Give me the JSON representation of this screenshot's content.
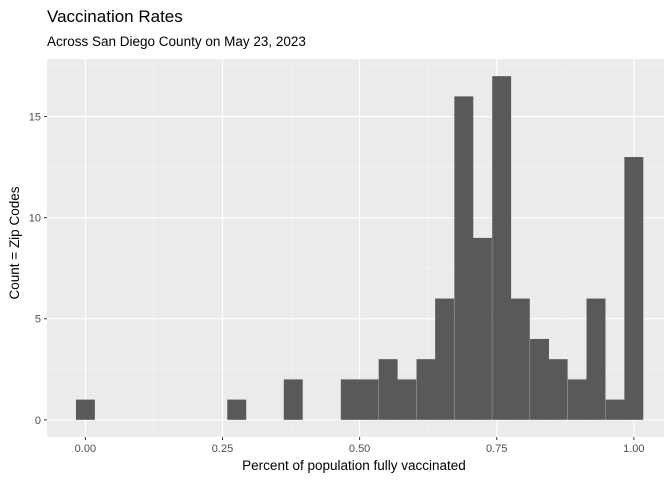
{
  "chart_data": {
    "type": "bar",
    "title": "Vaccination Rates",
    "subtitle": "Across San Diego County on May 23, 2023",
    "xlabel": "Percent of population fully vaccinated",
    "ylabel": "Count = Zip Codes",
    "xlim": [
      -0.07,
      1.055
    ],
    "ylim": [
      -0.85,
      17.85
    ],
    "x_ticks": [
      0.0,
      0.25,
      0.5,
      0.75,
      1.0
    ],
    "x_tick_labels": [
      "0.00",
      "0.25",
      "0.50",
      "0.75",
      "1.00"
    ],
    "y_ticks": [
      0,
      5,
      10,
      15
    ],
    "y_tick_labels": [
      "0",
      "5",
      "10",
      "15"
    ],
    "bin_width": 0.0345,
    "bins": [
      {
        "x": 0.0,
        "count": 1
      },
      {
        "x": 0.276,
        "count": 1
      },
      {
        "x": 0.379,
        "count": 2
      },
      {
        "x": 0.483,
        "count": 2
      },
      {
        "x": 0.517,
        "count": 2
      },
      {
        "x": 0.552,
        "count": 3
      },
      {
        "x": 0.586,
        "count": 2
      },
      {
        "x": 0.621,
        "count": 3
      },
      {
        "x": 0.655,
        "count": 6
      },
      {
        "x": 0.69,
        "count": 16
      },
      {
        "x": 0.724,
        "count": 9
      },
      {
        "x": 0.759,
        "count": 17
      },
      {
        "x": 0.793,
        "count": 6
      },
      {
        "x": 0.828,
        "count": 4
      },
      {
        "x": 0.862,
        "count": 3
      },
      {
        "x": 0.897,
        "count": 2
      },
      {
        "x": 0.931,
        "count": 6
      },
      {
        "x": 0.966,
        "count": 1
      },
      {
        "x": 1.0,
        "count": 13
      }
    ],
    "colors": {
      "bar": "#595959",
      "panel_background": "#ebebeb",
      "grid_major": "#ffffff",
      "tick_text": "#4d4d4d",
      "tick_mark": "#333333"
    },
    "grid": true,
    "legend": "none"
  }
}
